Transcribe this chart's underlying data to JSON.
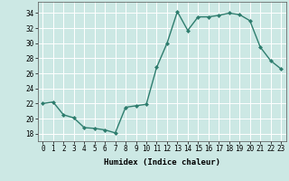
{
  "x": [
    0,
    1,
    2,
    3,
    4,
    5,
    6,
    7,
    8,
    9,
    10,
    11,
    12,
    13,
    14,
    15,
    16,
    17,
    18,
    19,
    20,
    21,
    22,
    23
  ],
  "y": [
    22,
    22.2,
    20.5,
    20.1,
    18.8,
    18.7,
    18.5,
    18.1,
    21.5,
    21.7,
    21.9,
    26.8,
    30.0,
    34.2,
    31.7,
    33.5,
    33.5,
    33.7,
    34.0,
    33.8,
    33.0,
    29.5,
    27.7,
    26.6
  ],
  "line_color": "#2e7d6e",
  "marker": "D",
  "marker_size": 2.0,
  "bg_color": "#cce8e4",
  "grid_color": "white",
  "xlabel": "Humidex (Indice chaleur)",
  "xlim": [
    -0.5,
    23.5
  ],
  "ylim": [
    17.0,
    35.5
  ],
  "yticks": [
    18,
    20,
    22,
    24,
    26,
    28,
    30,
    32,
    34
  ],
  "xticks": [
    0,
    1,
    2,
    3,
    4,
    5,
    6,
    7,
    8,
    9,
    10,
    11,
    12,
    13,
    14,
    15,
    16,
    17,
    18,
    19,
    20,
    21,
    22,
    23
  ],
  "tick_fontsize": 5.5,
  "xlabel_fontsize": 6.5,
  "line_width": 1.0
}
